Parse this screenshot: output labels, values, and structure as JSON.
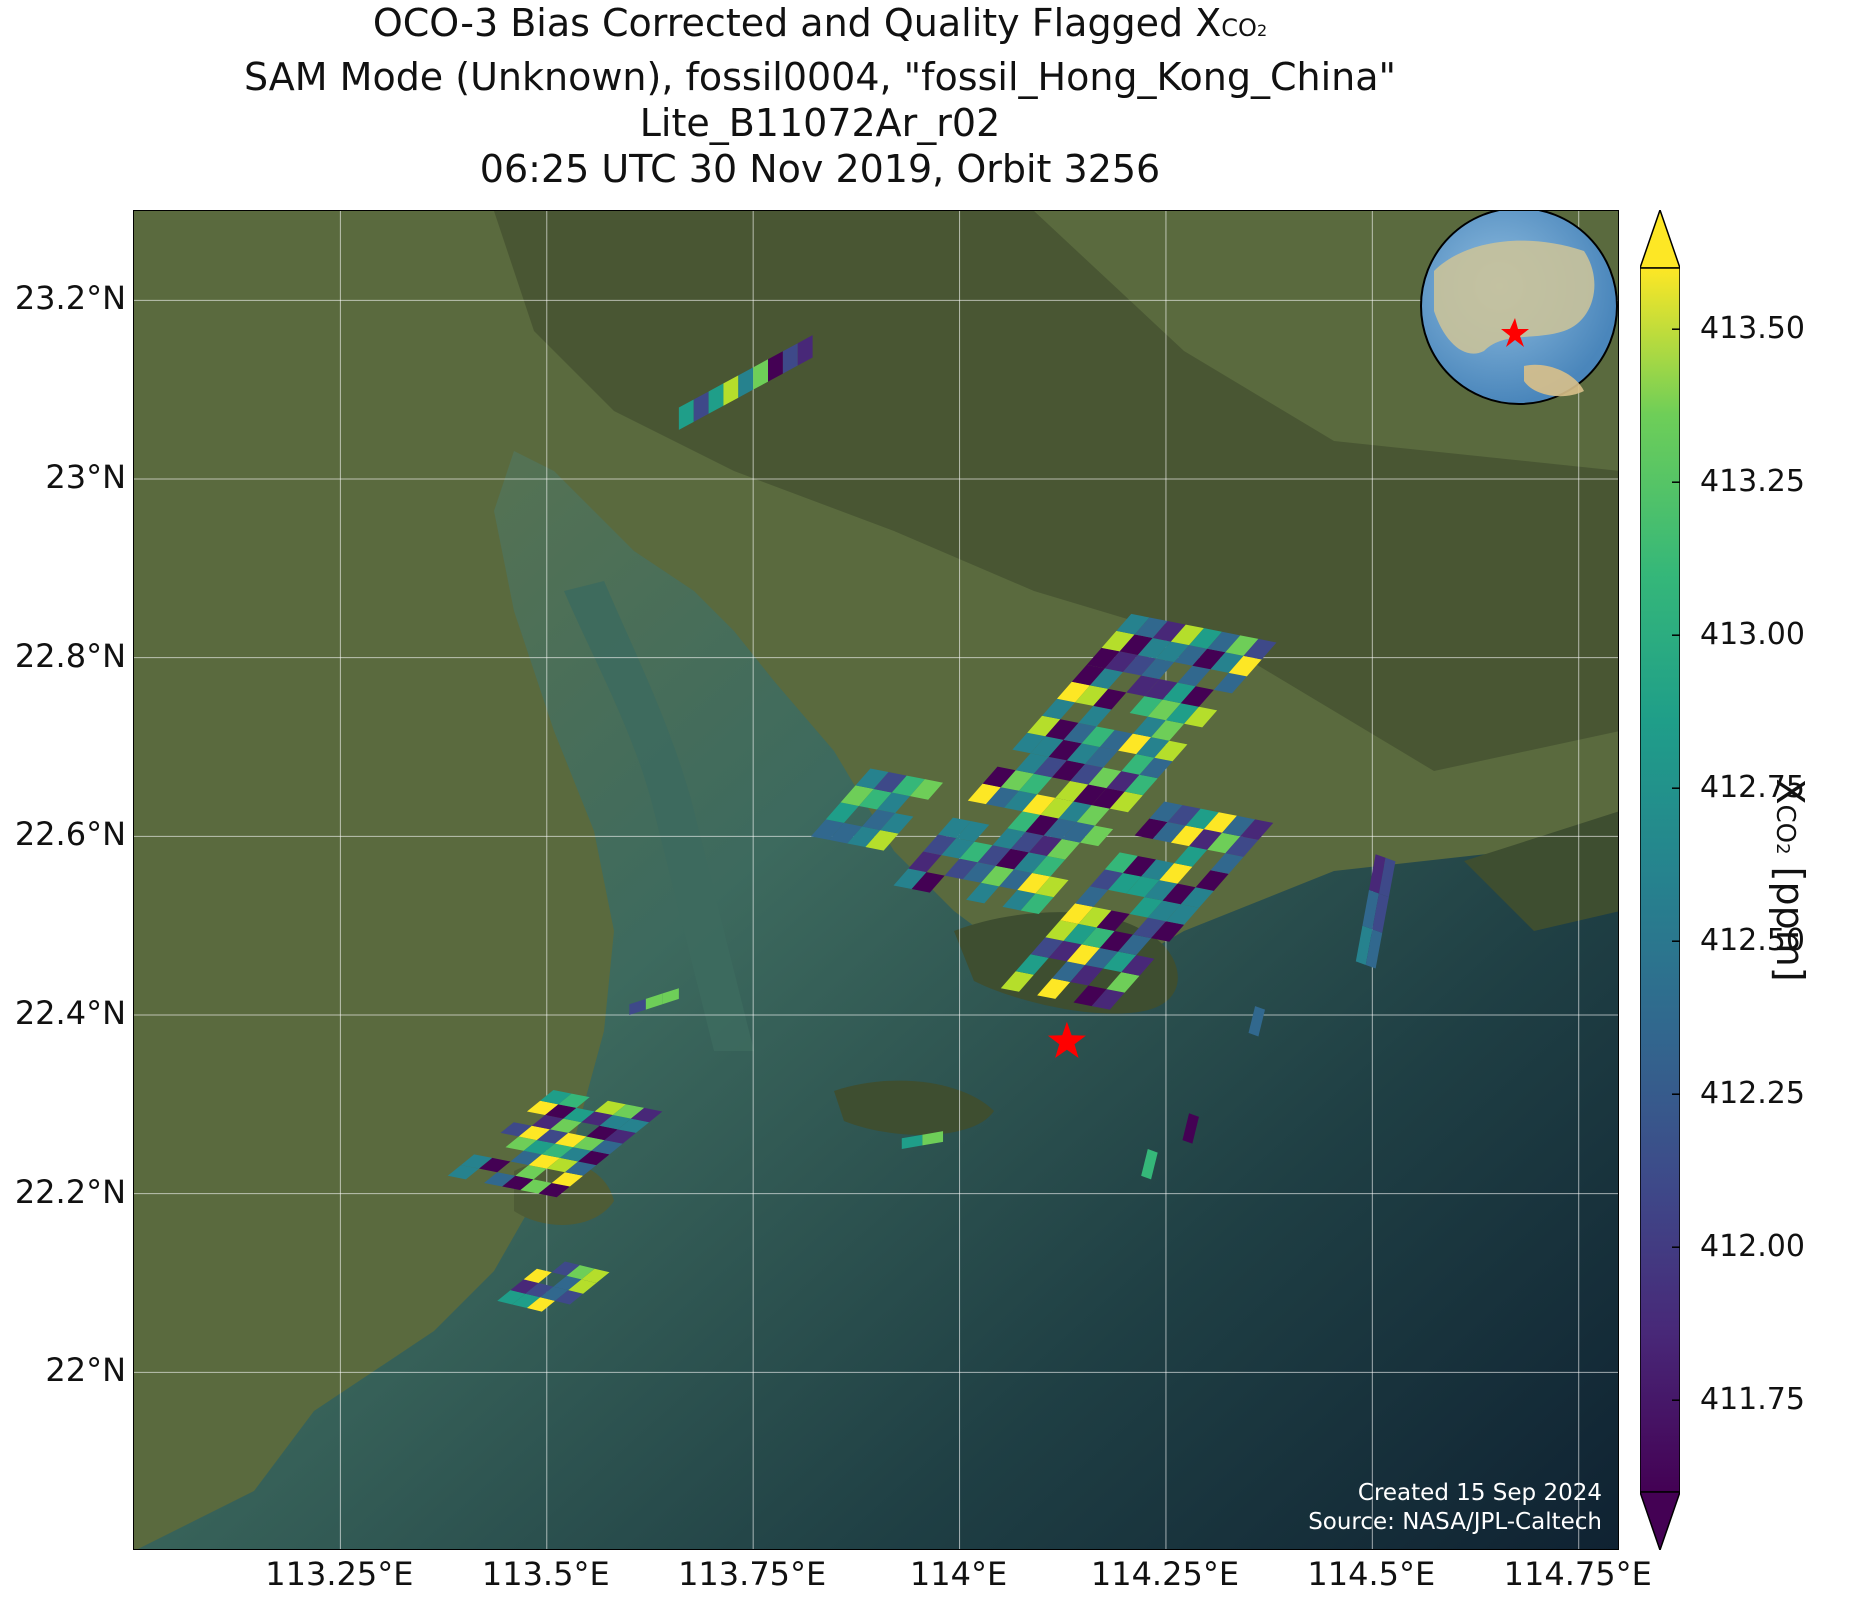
{
  "title": {
    "line1_prefix": "OCO-3 Bias Corrected and Quality Flagged X",
    "line1_subscript": "CO",
    "line1_subsub": "2",
    "line2": "SAM Mode (Unknown), fossil0004, \"fossil_Hong_Kong_China\"",
    "line3": "Lite_B11072Ar_r02",
    "line4": "06:25 UTC 30 Nov 2019, Orbit 3256"
  },
  "credits": {
    "created": "Created 15 Sep 2024",
    "source": "Source: NASA/JPL-Caltech"
  },
  "colorbar": {
    "title_prefix": "X",
    "title_sub": "CO",
    "title_subsub": "2",
    "title_suffix": " [ppm]",
    "min": 411.6,
    "max": 413.6,
    "ticks": [
      "413.50",
      "413.25",
      "413.00",
      "412.75",
      "412.50",
      "412.25",
      "412.00",
      "411.75"
    ],
    "colormap": "viridis",
    "extend": "both"
  },
  "axes": {
    "lat_labels": [
      "23.2°N",
      "23°N",
      "22.8°N",
      "22.6°N",
      "22.4°N",
      "22.2°N",
      "22°N"
    ],
    "lon_labels": [
      "113.25°E",
      "113.5°E",
      "113.75°E",
      "114°E",
      "114.25°E",
      "114.5°E",
      "114.75°E"
    ],
    "lat_values": [
      23.2,
      23.0,
      22.8,
      22.6,
      22.4,
      22.2,
      22.0
    ],
    "lon_values": [
      113.25,
      113.5,
      113.75,
      114.0,
      114.25,
      114.5,
      114.75
    ],
    "lat_range": [
      21.8,
      23.3
    ],
    "lon_range": [
      113.0,
      114.8
    ],
    "grid": true
  },
  "target": {
    "name": "fossil_Hong_Kong_China",
    "lon": 114.13,
    "lat": 22.37,
    "marker": "red-star"
  },
  "inset_globe": {
    "marker": "red-star",
    "center_region": "East Asia"
  },
  "colors": {
    "land": "#4a5a3a",
    "water": "#2a4a4a",
    "target_marker": "#ff0000"
  }
}
